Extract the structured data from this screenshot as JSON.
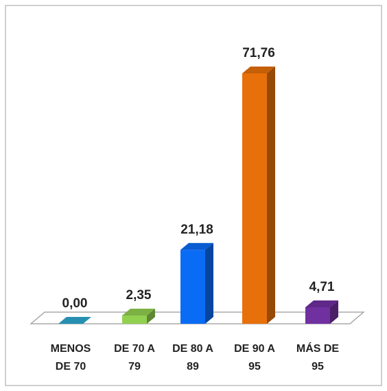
{
  "chart_data": {
    "type": "bar3d",
    "categories": [
      "MENOS DE 70",
      "DE 70 A 79",
      "DE 80 A 89",
      "DE 90 A 95",
      "MÁS DE 95"
    ],
    "values": [
      0,
      2.35,
      21.18,
      71.76,
      4.71
    ],
    "value_labels": [
      "0,00",
      "2,35",
      "21,18",
      "71,76",
      "4,71"
    ],
    "colors": [
      "#2ea8d0",
      "#92d050",
      "#0a6cf5",
      "#e8700a",
      "#7030a0"
    ]
  }
}
